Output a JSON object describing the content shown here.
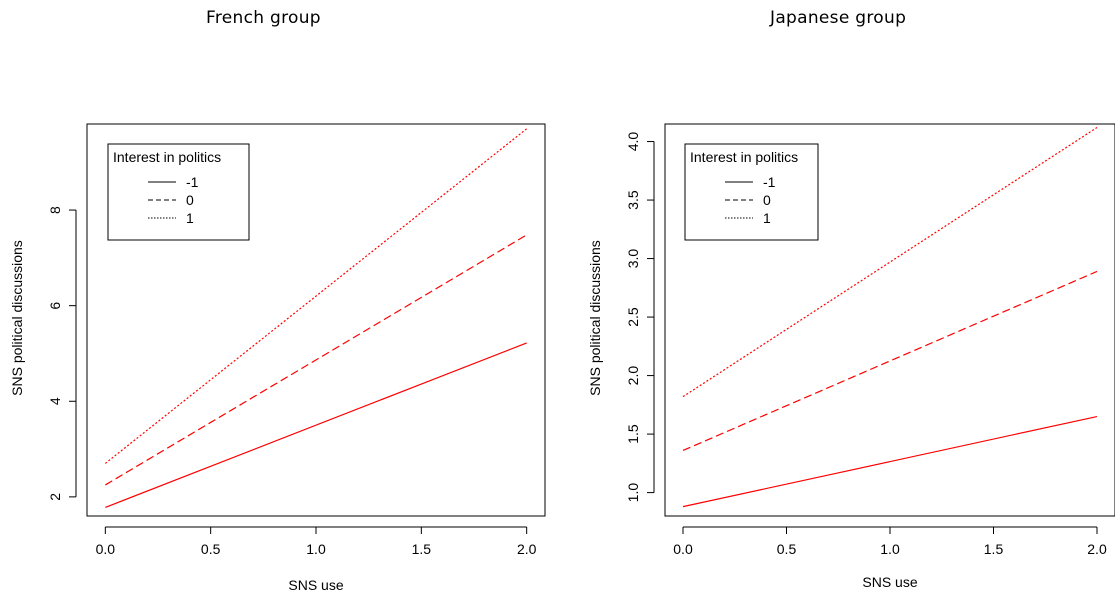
{
  "chart_data": [
    {
      "type": "line",
      "title": "French group",
      "xlabel": "SNS use",
      "ylabel": "SNS political discussions",
      "xlim": [
        0,
        2
      ],
      "ylim": [
        1.6,
        9.8
      ],
      "xticks": [
        "0.0",
        "0.5",
        "1.0",
        "1.5",
        "2.0"
      ],
      "yticks": [
        "2",
        "4",
        "6",
        "8"
      ],
      "legend": {
        "title": "Interest in politics",
        "position": "top-left"
      },
      "x": [
        0,
        2
      ],
      "series": [
        {
          "name": "-1",
          "style": "solid",
          "values": [
            1.78,
            5.22
          ]
        },
        {
          "name": "0",
          "style": "dashed",
          "values": [
            2.25,
            7.48
          ]
        },
        {
          "name": "1",
          "style": "dotted",
          "values": [
            2.7,
            9.7
          ]
        }
      ],
      "line_color": "#ff0000",
      "grid": false
    },
    {
      "type": "line",
      "title": "Japanese group",
      "xlabel": "SNS use",
      "ylabel": "SNS political discussions",
      "xlim": [
        0,
        2
      ],
      "ylim": [
        0.8,
        4.15
      ],
      "xticks": [
        "0.0",
        "0.5",
        "1.0",
        "1.5",
        "2.0"
      ],
      "yticks": [
        "1.0",
        "1.5",
        "2.0",
        "2.5",
        "3.0",
        "3.5",
        "4.0"
      ],
      "legend": {
        "title": "Interest in politics",
        "position": "top-left"
      },
      "x": [
        0,
        2
      ],
      "series": [
        {
          "name": "-1",
          "style": "solid",
          "values": [
            0.88,
            1.65
          ]
        },
        {
          "name": "0",
          "style": "dashed",
          "values": [
            1.36,
            2.89
          ]
        },
        {
          "name": "1",
          "style": "dotted",
          "values": [
            1.82,
            4.12
          ]
        }
      ],
      "line_color": "#ff0000",
      "grid": false
    }
  ]
}
